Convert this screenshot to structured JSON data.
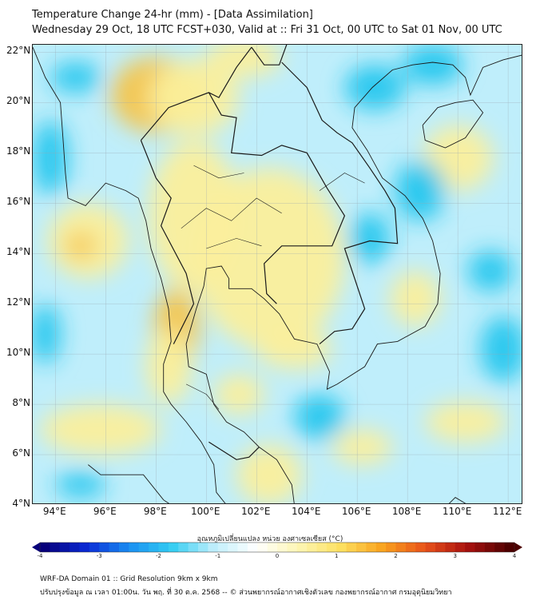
{
  "header": {
    "title": "Temperature Change 24-hr (mm) - [Data Assimilation]",
    "subtitle": "Wednesday 29 Oct, 18 UTC FCST+030, Valid at :: Fri 31 Oct, 00 UTC to Sat 01 Nov, 00 UTC"
  },
  "map": {
    "lat_labels": [
      "22°N",
      "20°N",
      "18°N",
      "16°N",
      "14°N",
      "12°N",
      "10°N",
      "8°N",
      "6°N",
      "4°N"
    ],
    "lon_labels": [
      "94°E",
      "96°E",
      "98°E",
      "100°E",
      "102°E",
      "104°E",
      "106°E",
      "108°E",
      "110°E",
      "112°E"
    ],
    "lat_range": [
      4,
      22.3
    ],
    "lon_range": [
      93.1,
      112.6
    ],
    "gridlines": true,
    "colors": {
      "background_cyan": "#bfeefb",
      "cyan_strong": "#22c6ee",
      "yellow": "#fbef9c",
      "orange": "#f6c44a",
      "borders": "#1a1a1a"
    }
  },
  "colorbar": {
    "label": "อุณหภูมิเปลี่ยนแปลง หน่วย องศาเซลเซียส (°C)",
    "ticks": [
      "-4",
      "-3",
      "-2",
      "-1",
      "0",
      "1",
      "2",
      "3",
      "4"
    ],
    "range": [
      -4,
      4
    ],
    "stops": [
      "#07007a",
      "#0a2bd6",
      "#1a8ff2",
      "#33cdf2",
      "#bfeefb",
      "#ffffff",
      "#fdf6b4",
      "#fde060",
      "#f9a21e",
      "#e8521a",
      "#a8110f",
      "#4d0000"
    ]
  },
  "footer": {
    "line1": "WRF-DA Domain 01 :: Grid Resolution 9km x 9km",
    "line2": "ปรับปรุงข้อมูล ณ เวลา 01:00น. วัน พฤ. ที่ 30 ต.ค. 2568 -- © ส่วนพยากรณ์อากาศเชิงตัวเลข กองพยากรณ์อากาศ กรมอุตุนิยมวิทยา"
  }
}
